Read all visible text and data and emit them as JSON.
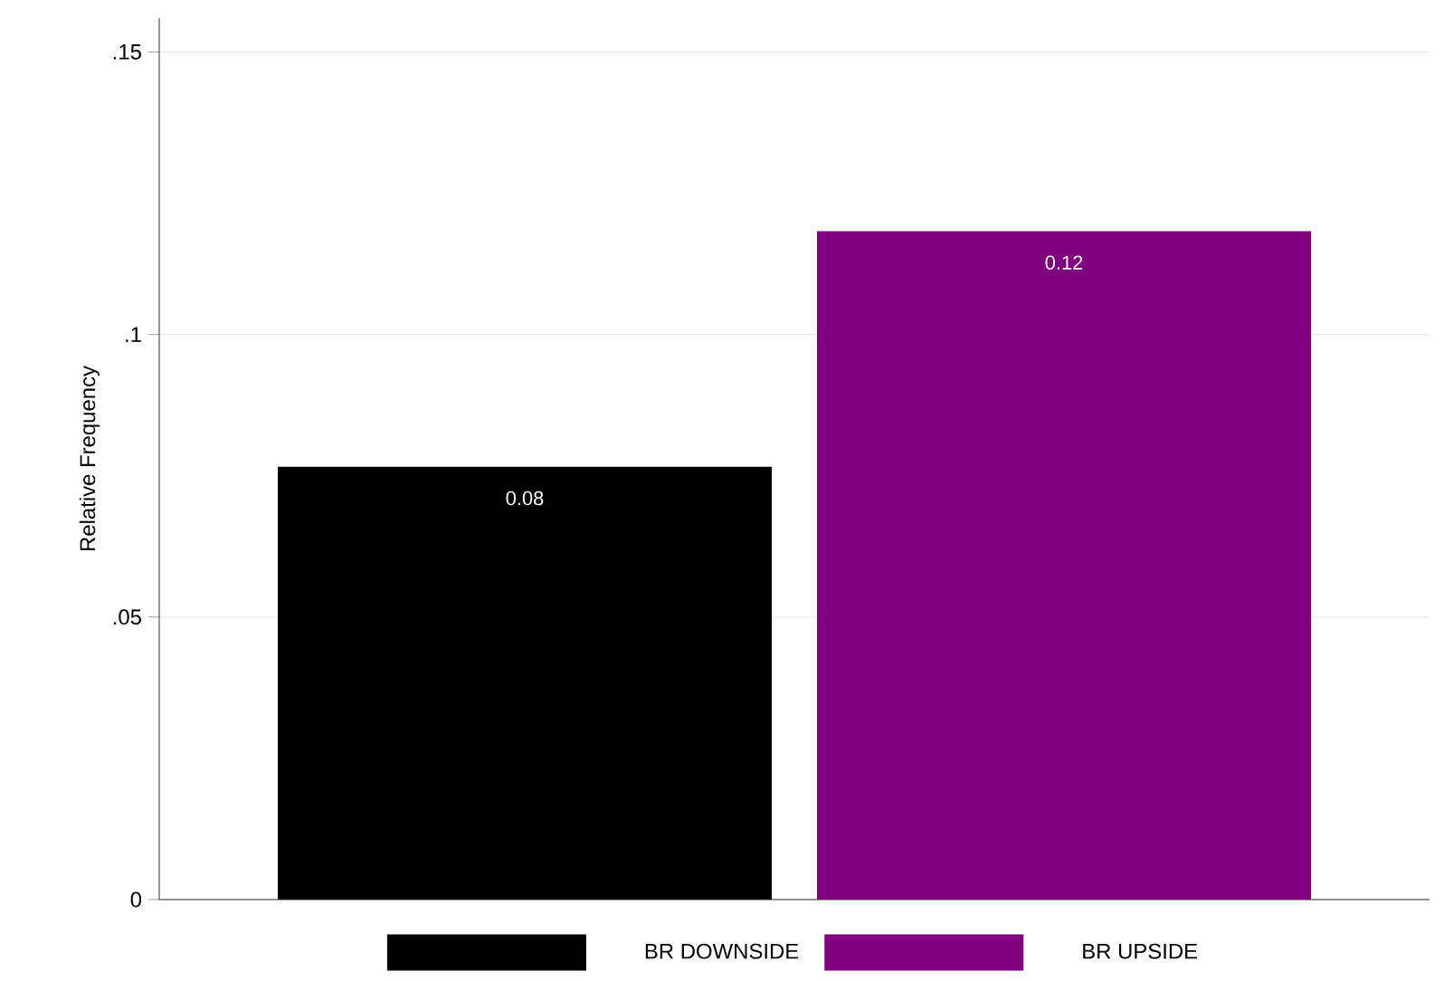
{
  "chart_data": {
    "type": "bar",
    "ylabel": "Relative Frequency",
    "categories": [
      null
    ],
    "series": [
      {
        "name": "BR DOWNSIDE",
        "color": "#000000",
        "values": [
          0.0766
        ],
        "value_labels": [
          "0.08"
        ]
      },
      {
        "name": "BR UPSIDE",
        "color": "#800080",
        "values": [
          0.1183
        ],
        "value_labels": [
          "0.12"
        ]
      }
    ],
    "ylim": [
      0,
      0.156
    ],
    "yticks": [
      {
        "value": 0,
        "label": "0"
      },
      {
        "value": 0.05,
        "label": ".05"
      },
      {
        "value": 0.1,
        "label": ".1"
      },
      {
        "value": 0.15,
        "label": ".15"
      }
    ],
    "grid": "y",
    "legend": "bottom"
  }
}
